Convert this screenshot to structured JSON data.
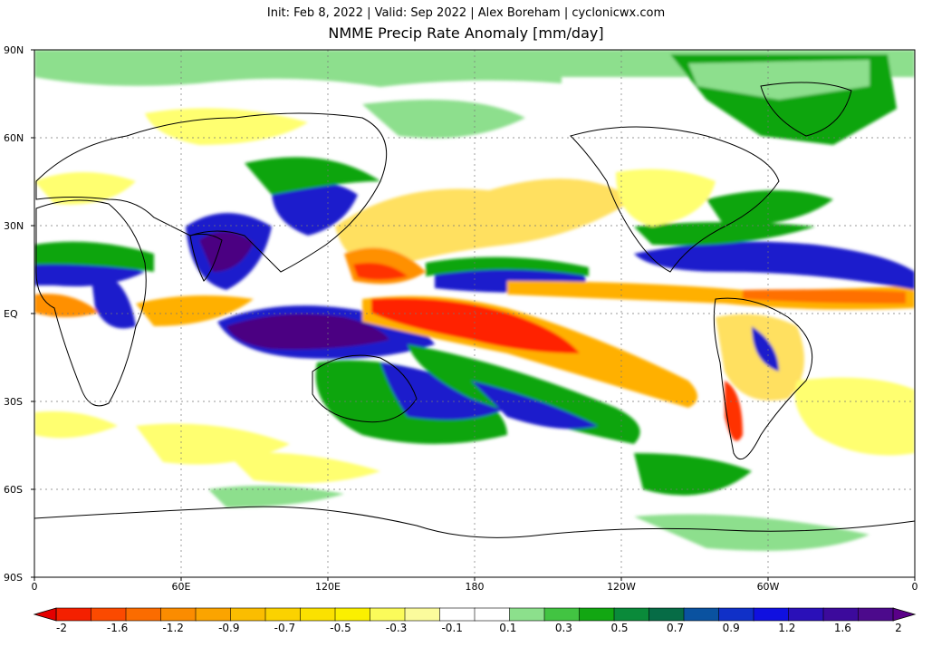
{
  "header": {
    "subtitle": "Init: Feb 8, 2022 | Valid: Sep 2022 | Alex Boreham | cyclonicwx.com",
    "title": "NMME Precip Rate Anomaly [mm/day]"
  },
  "axes": {
    "lat_labels": [
      "90N",
      "60N",
      "30N",
      "EQ",
      "30S",
      "60S",
      "90S"
    ],
    "lon_labels": [
      "0",
      "60E",
      "120E",
      "180",
      "120W",
      "60W",
      "0"
    ]
  },
  "colorbar": {
    "labels": [
      "-2",
      "-1.6",
      "-1.2",
      "-0.9",
      "-0.7",
      "-0.5",
      "-0.3",
      "-0.1",
      "0.1",
      "0.3",
      "0.5",
      "0.7",
      "0.9",
      "1.2",
      "1.6",
      "2"
    ],
    "colors": [
      "#e40000",
      "#f42000",
      "#fb4a00",
      "#fb6c00",
      "#fb8c00",
      "#fba400",
      "#fbbd00",
      "#fbd200",
      "#fbe100",
      "#fbf000",
      "#fbfb5a",
      "#fbfb9c",
      "#ffffff",
      "#ffffff",
      "#8ce08c",
      "#42c442",
      "#12a712",
      "#0a8a3a",
      "#066c46",
      "#0a52a0",
      "#1030c8",
      "#1010e0",
      "#2a10b8",
      "#3c0a9c",
      "#4c0a8c",
      "#5a0088"
    ]
  },
  "legend_colors": {
    "wet_strong": "#4b0082",
    "wet": "#1e1ecc",
    "wet_moderate": "#11a511",
    "wet_weak": "#8ddf8d",
    "dry_weak": "#ffff70",
    "dry": "#ffb000",
    "dry_strong": "#ff0000"
  }
}
